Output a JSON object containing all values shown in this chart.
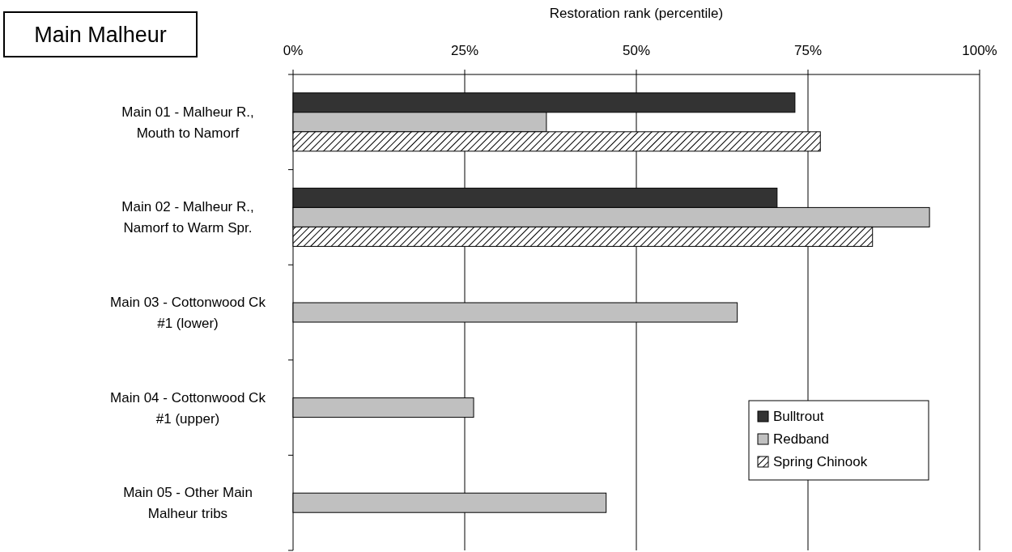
{
  "chart_data": {
    "type": "bar",
    "orientation": "horizontal",
    "title": "Main Malheur",
    "xlabel": "Restoration rank (percentile)",
    "categories": [
      "Main 01 - Malheur R., Mouth to Namorf",
      "Main 02 - Malheur R., Namorf to Warm Spr.",
      "Main 03 - Cottonwood Ck #1 (lower)",
      "Main 04 - Cottonwood Ck #1 (upper)",
      "Main 05 - Other Main Malheur tribs"
    ],
    "series": [
      {
        "name": "Bulltrout",
        "color": "#333333",
        "values": [
          73.1,
          70.5,
          null,
          null,
          null
        ]
      },
      {
        "name": "Redband",
        "color": "#c0c0c0",
        "values": [
          36.9,
          92.7,
          64.7,
          26.3,
          45.6
        ]
      },
      {
        "name": "Spring Chinook",
        "color": "#000000",
        "values": [
          76.8,
          84.4,
          null,
          null,
          null
        ]
      }
    ],
    "xlim": [
      0,
      100
    ],
    "xticks": [
      {
        "value": 0,
        "label": "0%"
      },
      {
        "value": 25,
        "label": "25%"
      },
      {
        "value": 50,
        "label": "50%"
      },
      {
        "value": 75,
        "label": "75%"
      },
      {
        "value": 100,
        "label": "100%"
      }
    ],
    "grid": "x",
    "legend": "bottom right"
  }
}
